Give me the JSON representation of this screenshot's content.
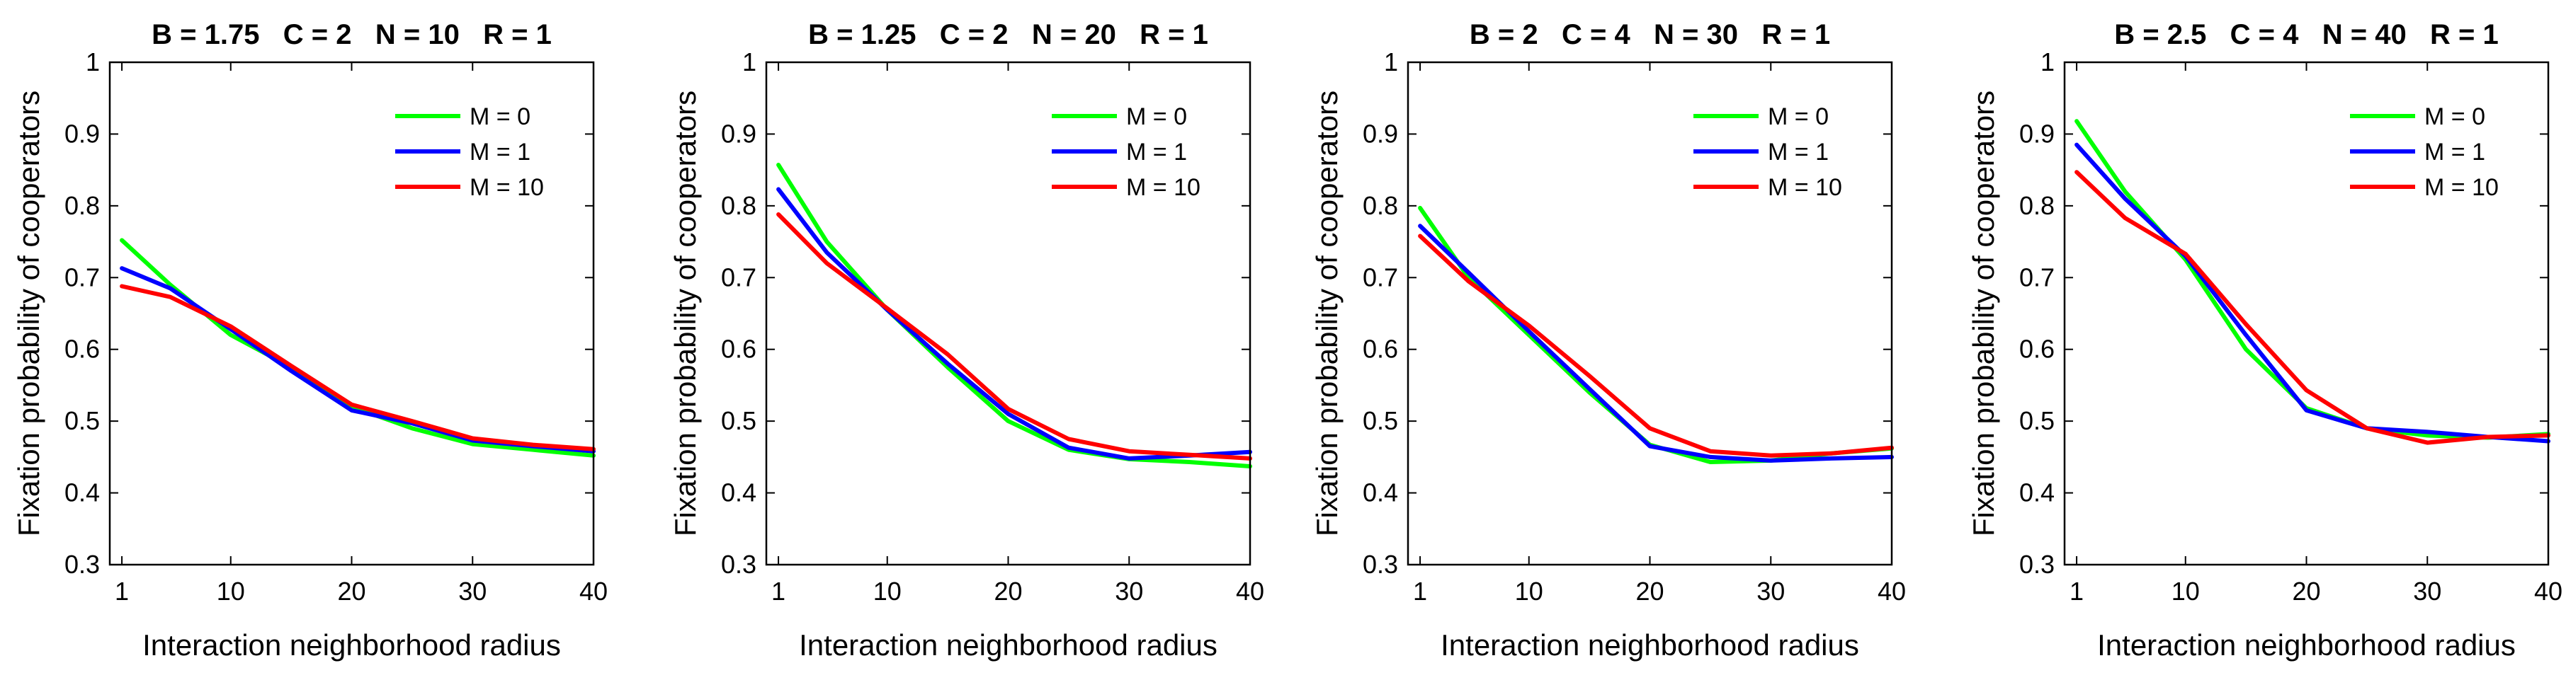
{
  "chart_data": [
    {
      "type": "line",
      "title": "B = 1.75   C = 2   N = 10   R = 1",
      "xlabel": "Interaction neighborhood radius",
      "ylabel": "Fixation probability of cooperators",
      "xlim": [
        0,
        40
      ],
      "ylim": [
        0.3,
        1
      ],
      "xticks": [
        1,
        10,
        20,
        30,
        40
      ],
      "yticks": [
        0.3,
        0.4,
        0.5,
        0.6,
        0.7,
        0.8,
        0.9,
        1
      ],
      "legend": "top-right",
      "series": [
        {
          "name": "M = 0",
          "color": "#00ff00",
          "x": [
            1,
            5,
            10,
            15,
            20,
            25,
            30,
            35,
            40
          ],
          "y": [
            0.752,
            0.69,
            0.62,
            0.575,
            0.52,
            0.49,
            0.468,
            0.46,
            0.452
          ]
        },
        {
          "name": "M = 1",
          "color": "#0000ff",
          "x": [
            1,
            5,
            10,
            15,
            20,
            25,
            30,
            35,
            40
          ],
          "y": [
            0.713,
            0.685,
            0.628,
            0.57,
            0.515,
            0.497,
            0.473,
            0.465,
            0.458
          ]
        },
        {
          "name": "M = 10",
          "color": "#ff0000",
          "x": [
            1,
            5,
            10,
            15,
            20,
            25,
            30,
            35,
            40
          ],
          "y": [
            0.688,
            0.673,
            0.632,
            0.577,
            0.523,
            0.5,
            0.476,
            0.467,
            0.461
          ]
        }
      ]
    },
    {
      "type": "line",
      "title": "B = 1.25   C = 2   N = 20   R = 1",
      "xlabel": "Interaction neighborhood radius",
      "ylabel": "Fixation probability of cooperators",
      "xlim": [
        0,
        40
      ],
      "ylim": [
        0.3,
        1
      ],
      "xticks": [
        1,
        10,
        20,
        30,
        40
      ],
      "yticks": [
        0.3,
        0.4,
        0.5,
        0.6,
        0.7,
        0.8,
        0.9,
        1
      ],
      "legend": "top-right",
      "series": [
        {
          "name": "M = 0",
          "color": "#00ff00",
          "x": [
            1,
            5,
            10,
            15,
            20,
            25,
            30,
            35,
            40
          ],
          "y": [
            0.857,
            0.75,
            0.655,
            0.575,
            0.5,
            0.46,
            0.447,
            0.443,
            0.437
          ]
        },
        {
          "name": "M = 1",
          "color": "#0000ff",
          "x": [
            1,
            5,
            10,
            15,
            20,
            25,
            30,
            35,
            40
          ],
          "y": [
            0.823,
            0.735,
            0.655,
            0.58,
            0.51,
            0.463,
            0.448,
            0.452,
            0.457
          ]
        },
        {
          "name": "M = 10",
          "color": "#ff0000",
          "x": [
            1,
            5,
            10,
            15,
            20,
            25,
            30,
            35,
            40
          ],
          "y": [
            0.788,
            0.72,
            0.657,
            0.593,
            0.517,
            0.475,
            0.458,
            0.453,
            0.448
          ]
        }
      ]
    },
    {
      "type": "line",
      "title": "B = 2   C = 4   N = 30   R = 1",
      "xlabel": "Interaction neighborhood radius",
      "ylabel": "Fixation probability of cooperators",
      "xlim": [
        0,
        40
      ],
      "ylim": [
        0.3,
        1
      ],
      "xticks": [
        1,
        10,
        20,
        30,
        40
      ],
      "yticks": [
        0.3,
        0.4,
        0.5,
        0.6,
        0.7,
        0.8,
        0.9,
        1
      ],
      "legend": "top-right",
      "series": [
        {
          "name": "M = 0",
          "color": "#00ff00",
          "x": [
            1,
            5,
            10,
            15,
            20,
            25,
            30,
            35,
            40
          ],
          "y": [
            0.797,
            0.7,
            0.62,
            0.54,
            0.467,
            0.443,
            0.445,
            0.455,
            0.462
          ]
        },
        {
          "name": "M = 1",
          "color": "#0000ff",
          "x": [
            1,
            5,
            10,
            15,
            20,
            25,
            30,
            35,
            40
          ],
          "y": [
            0.772,
            0.707,
            0.625,
            0.545,
            0.465,
            0.45,
            0.445,
            0.448,
            0.45
          ]
        },
        {
          "name": "M = 10",
          "color": "#ff0000",
          "x": [
            1,
            5,
            10,
            15,
            20,
            25,
            30,
            35,
            40
          ],
          "y": [
            0.758,
            0.695,
            0.633,
            0.563,
            0.49,
            0.458,
            0.452,
            0.455,
            0.463
          ]
        }
      ]
    },
    {
      "type": "line",
      "title": "B = 2.5   C = 4   N = 40   R = 1",
      "xlabel": "Interaction neighborhood radius",
      "ylabel": "Fixation probability of cooperators",
      "xlim": [
        0,
        40
      ],
      "ylim": [
        0.3,
        1
      ],
      "xticks": [
        1,
        10,
        20,
        30,
        40
      ],
      "yticks": [
        0.3,
        0.4,
        0.5,
        0.6,
        0.7,
        0.8,
        0.9,
        1
      ],
      "legend": "top-right",
      "series": [
        {
          "name": "M = 0",
          "color": "#00ff00",
          "x": [
            1,
            5,
            10,
            15,
            20,
            25,
            30,
            35,
            40
          ],
          "y": [
            0.918,
            0.82,
            0.725,
            0.6,
            0.518,
            0.49,
            0.48,
            0.477,
            0.482
          ]
        },
        {
          "name": "M = 1",
          "color": "#0000ff",
          "x": [
            1,
            5,
            10,
            15,
            20,
            25,
            30,
            35,
            40
          ],
          "y": [
            0.885,
            0.81,
            0.73,
            0.62,
            0.515,
            0.49,
            0.485,
            0.478,
            0.472
          ]
        },
        {
          "name": "M = 10",
          "color": "#ff0000",
          "x": [
            1,
            5,
            10,
            15,
            20,
            25,
            30,
            35,
            40
          ],
          "y": [
            0.847,
            0.783,
            0.733,
            0.635,
            0.543,
            0.49,
            0.47,
            0.478,
            0.48
          ]
        }
      ]
    }
  ]
}
